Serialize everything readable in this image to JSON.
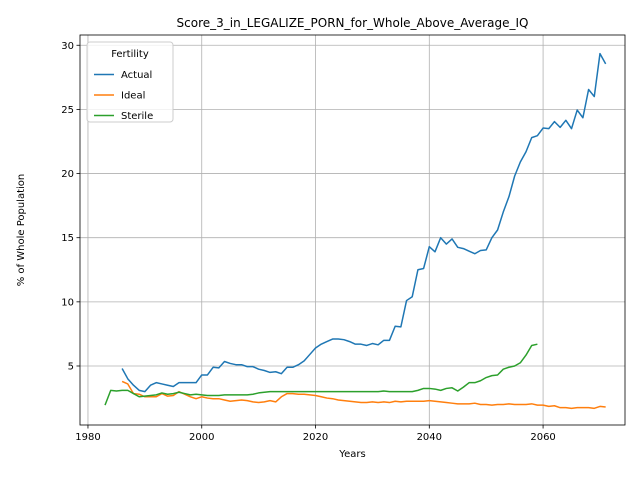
{
  "chart_data": {
    "type": "line",
    "title": "Score_3_in_LEGALIZE_PORN_for_Whole_Above_Average_IQ",
    "xlabel": "Years",
    "ylabel": "% of Whole Population",
    "xlim": [
      1978.6,
      2074.4
    ],
    "ylim": [
      0.4,
      30.8
    ],
    "xticks": [
      1980,
      2000,
      2020,
      2040,
      2060
    ],
    "yticks": [
      5,
      10,
      15,
      20,
      25,
      30
    ],
    "grid": true,
    "legend": {
      "title": "Fertility",
      "placement": "top-left"
    },
    "series": [
      {
        "name": "Actual",
        "color": "#1f77b4",
        "points": [
          [
            1986,
            4.8
          ],
          [
            1987,
            4.0
          ],
          [
            1988,
            3.5
          ],
          [
            1989,
            3.1
          ],
          [
            1990,
            3.0
          ],
          [
            1991,
            3.5
          ],
          [
            1992,
            3.7
          ],
          [
            1993,
            3.6
          ],
          [
            1994,
            3.5
          ],
          [
            1995,
            3.4
          ],
          [
            1996,
            3.7
          ],
          [
            1997,
            3.7
          ],
          [
            1998,
            3.7
          ],
          [
            1999,
            3.7
          ],
          [
            2000,
            4.3
          ],
          [
            2001,
            4.3
          ],
          [
            2002,
            4.9
          ],
          [
            2003,
            4.85
          ],
          [
            2004,
            5.35
          ],
          [
            2005,
            5.2
          ],
          [
            2006,
            5.1
          ],
          [
            2007,
            5.1
          ],
          [
            2008,
            4.95
          ],
          [
            2009,
            4.95
          ],
          [
            2010,
            4.75
          ],
          [
            2011,
            4.65
          ],
          [
            2012,
            4.5
          ],
          [
            2013,
            4.55
          ],
          [
            2014,
            4.4
          ],
          [
            2015,
            4.9
          ],
          [
            2016,
            4.9
          ],
          [
            2017,
            5.1
          ],
          [
            2018,
            5.4
          ],
          [
            2019,
            5.9
          ],
          [
            2020,
            6.4
          ],
          [
            2021,
            6.7
          ],
          [
            2022,
            6.9
          ],
          [
            2023,
            7.1
          ],
          [
            2024,
            7.1
          ],
          [
            2025,
            7.05
          ],
          [
            2026,
            6.9
          ],
          [
            2027,
            6.7
          ],
          [
            2028,
            6.7
          ],
          [
            2029,
            6.6
          ],
          [
            2030,
            6.75
          ],
          [
            2031,
            6.65
          ],
          [
            2032,
            7.0
          ],
          [
            2033,
            7.0
          ],
          [
            2034,
            8.1
          ],
          [
            2035,
            8.05
          ],
          [
            2036,
            10.1
          ],
          [
            2037,
            10.4
          ],
          [
            2038,
            12.5
          ],
          [
            2039,
            12.6
          ],
          [
            2040,
            14.3
          ],
          [
            2041,
            13.9
          ],
          [
            2042,
            15.0
          ],
          [
            2043,
            14.5
          ],
          [
            2044,
            14.9
          ],
          [
            2045,
            14.25
          ],
          [
            2046,
            14.15
          ],
          [
            2047,
            13.95
          ],
          [
            2048,
            13.75
          ],
          [
            2049,
            14.0
          ],
          [
            2050,
            14.05
          ],
          [
            2051,
            15.0
          ],
          [
            2052,
            15.6
          ],
          [
            2053,
            17.0
          ],
          [
            2054,
            18.2
          ],
          [
            2055,
            19.8
          ],
          [
            2056,
            20.9
          ],
          [
            2057,
            21.7
          ],
          [
            2058,
            22.8
          ],
          [
            2059,
            22.95
          ],
          [
            2060,
            23.55
          ],
          [
            2061,
            23.5
          ],
          [
            2062,
            24.05
          ],
          [
            2063,
            23.6
          ],
          [
            2064,
            24.15
          ],
          [
            2065,
            23.5
          ],
          [
            2066,
            24.95
          ],
          [
            2067,
            24.35
          ],
          [
            2068,
            26.55
          ],
          [
            2069,
            26.0
          ],
          [
            2070,
            29.35
          ],
          [
            2071,
            28.55
          ]
        ]
      },
      {
        "name": "Ideal",
        "color": "#ff7f0e",
        "points": [
          [
            1986,
            3.8
          ],
          [
            1987,
            3.6
          ],
          [
            1988,
            2.85
          ],
          [
            1989,
            2.8
          ],
          [
            1990,
            2.6
          ],
          [
            1991,
            2.6
          ],
          [
            1992,
            2.6
          ],
          [
            1993,
            2.85
          ],
          [
            1994,
            2.65
          ],
          [
            1995,
            2.7
          ],
          [
            1996,
            3.0
          ],
          [
            1997,
            2.8
          ],
          [
            1998,
            2.6
          ],
          [
            1999,
            2.45
          ],
          [
            2000,
            2.6
          ],
          [
            2001,
            2.5
          ],
          [
            2002,
            2.45
          ],
          [
            2003,
            2.45
          ],
          [
            2004,
            2.35
          ],
          [
            2005,
            2.25
          ],
          [
            2006,
            2.3
          ],
          [
            2007,
            2.35
          ],
          [
            2008,
            2.3
          ],
          [
            2009,
            2.2
          ],
          [
            2010,
            2.15
          ],
          [
            2011,
            2.2
          ],
          [
            2012,
            2.3
          ],
          [
            2013,
            2.2
          ],
          [
            2014,
            2.6
          ],
          [
            2015,
            2.85
          ],
          [
            2016,
            2.85
          ],
          [
            2017,
            2.8
          ],
          [
            2018,
            2.8
          ],
          [
            2019,
            2.75
          ],
          [
            2020,
            2.7
          ],
          [
            2021,
            2.6
          ],
          [
            2022,
            2.5
          ],
          [
            2023,
            2.45
          ],
          [
            2024,
            2.35
          ],
          [
            2025,
            2.3
          ],
          [
            2026,
            2.25
          ],
          [
            2027,
            2.2
          ],
          [
            2028,
            2.15
          ],
          [
            2029,
            2.15
          ],
          [
            2030,
            2.2
          ],
          [
            2031,
            2.15
          ],
          [
            2032,
            2.2
          ],
          [
            2033,
            2.15
          ],
          [
            2034,
            2.25
          ],
          [
            2035,
            2.2
          ],
          [
            2036,
            2.25
          ],
          [
            2037,
            2.25
          ],
          [
            2038,
            2.25
          ],
          [
            2039,
            2.25
          ],
          [
            2040,
            2.3
          ],
          [
            2041,
            2.25
          ],
          [
            2042,
            2.2
          ],
          [
            2043,
            2.15
          ],
          [
            2044,
            2.1
          ],
          [
            2045,
            2.05
          ],
          [
            2046,
            2.05
          ],
          [
            2047,
            2.05
          ],
          [
            2048,
            2.1
          ],
          [
            2049,
            2.0
          ],
          [
            2050,
            2.0
          ],
          [
            2051,
            1.95
          ],
          [
            2052,
            2.0
          ],
          [
            2053,
            2.0
          ],
          [
            2054,
            2.05
          ],
          [
            2055,
            2.0
          ],
          [
            2056,
            2.0
          ],
          [
            2057,
            2.0
          ],
          [
            2058,
            2.05
          ],
          [
            2059,
            1.95
          ],
          [
            2060,
            1.95
          ],
          [
            2061,
            1.85
          ],
          [
            2062,
            1.9
          ],
          [
            2063,
            1.75
          ],
          [
            2064,
            1.75
          ],
          [
            2065,
            1.7
          ],
          [
            2066,
            1.75
          ],
          [
            2067,
            1.75
          ],
          [
            2068,
            1.75
          ],
          [
            2069,
            1.7
          ],
          [
            2070,
            1.85
          ],
          [
            2071,
            1.8
          ]
        ]
      },
      {
        "name": "Sterile",
        "color": "#2ca02c",
        "points": [
          [
            1983,
            1.95
          ],
          [
            1984,
            3.1
          ],
          [
            1985,
            3.05
          ],
          [
            1986,
            3.1
          ],
          [
            1987,
            3.1
          ],
          [
            1988,
            2.85
          ],
          [
            1989,
            2.6
          ],
          [
            1990,
            2.65
          ],
          [
            1991,
            2.7
          ],
          [
            1992,
            2.75
          ],
          [
            1993,
            2.9
          ],
          [
            1994,
            2.8
          ],
          [
            1995,
            2.85
          ],
          [
            1996,
            2.95
          ],
          [
            1997,
            2.85
          ],
          [
            1998,
            2.75
          ],
          [
            1999,
            2.8
          ],
          [
            2000,
            2.75
          ],
          [
            2001,
            2.7
          ],
          [
            2002,
            2.7
          ],
          [
            2003,
            2.7
          ],
          [
            2004,
            2.75
          ],
          [
            2005,
            2.75
          ],
          [
            2006,
            2.75
          ],
          [
            2007,
            2.75
          ],
          [
            2008,
            2.75
          ],
          [
            2009,
            2.8
          ],
          [
            2010,
            2.9
          ],
          [
            2011,
            2.95
          ],
          [
            2012,
            3.0
          ],
          [
            2013,
            3.0
          ],
          [
            2014,
            3.0
          ],
          [
            2015,
            3.0
          ],
          [
            2016,
            3.0
          ],
          [
            2017,
            3.0
          ],
          [
            2018,
            3.0
          ],
          [
            2019,
            3.0
          ],
          [
            2020,
            3.0
          ],
          [
            2021,
            3.0
          ],
          [
            2022,
            3.0
          ],
          [
            2023,
            3.0
          ],
          [
            2024,
            3.0
          ],
          [
            2025,
            3.0
          ],
          [
            2026,
            3.0
          ],
          [
            2027,
            3.0
          ],
          [
            2028,
            3.0
          ],
          [
            2029,
            3.0
          ],
          [
            2030,
            3.0
          ],
          [
            2031,
            3.0
          ],
          [
            2032,
            3.05
          ],
          [
            2033,
            3.0
          ],
          [
            2034,
            3.0
          ],
          [
            2035,
            3.0
          ],
          [
            2036,
            3.0
          ],
          [
            2037,
            3.0
          ],
          [
            2038,
            3.1
          ],
          [
            2039,
            3.25
          ],
          [
            2040,
            3.25
          ],
          [
            2041,
            3.2
          ],
          [
            2042,
            3.1
          ],
          [
            2043,
            3.25
          ],
          [
            2044,
            3.3
          ],
          [
            2045,
            3.05
          ],
          [
            2046,
            3.35
          ],
          [
            2047,
            3.7
          ],
          [
            2048,
            3.7
          ],
          [
            2049,
            3.85
          ],
          [
            2050,
            4.1
          ],
          [
            2051,
            4.25
          ],
          [
            2052,
            4.3
          ],
          [
            2053,
            4.75
          ],
          [
            2054,
            4.9
          ],
          [
            2055,
            5.0
          ],
          [
            2056,
            5.25
          ],
          [
            2057,
            5.85
          ],
          [
            2058,
            6.6
          ],
          [
            2059,
            6.7
          ]
        ]
      }
    ]
  }
}
